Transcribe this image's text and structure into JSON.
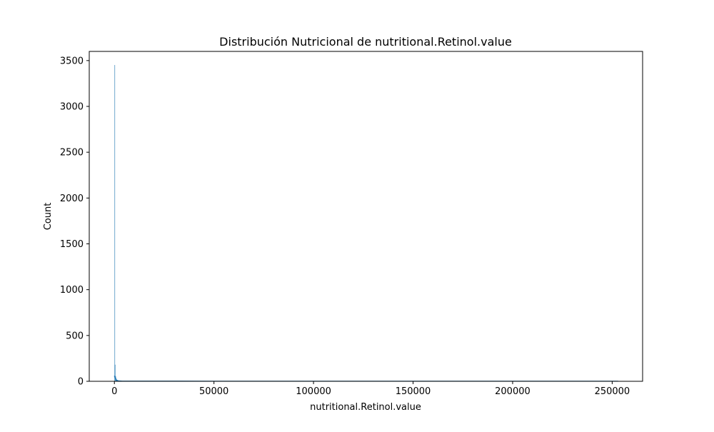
{
  "chart_data": {
    "type": "bar",
    "title": "Distribución Nutricional de nutritional.Retinol.value",
    "xlabel": "nutritional.Retinol.value",
    "ylabel": "Count",
    "xlim": [
      -12632,
      265275
    ],
    "ylim": [
      0,
      3600
    ],
    "x_ticks": [
      0,
      50000,
      100000,
      150000,
      200000,
      250000
    ],
    "x_tick_labels": [
      "0",
      "50000",
      "100000",
      "150000",
      "200000",
      "250000"
    ],
    "y_ticks": [
      0,
      500,
      1000,
      1500,
      2000,
      2500,
      3000,
      3500
    ],
    "y_tick_labels": [
      "0",
      "500",
      "1000",
      "1500",
      "2000",
      "2500",
      "3000",
      "3500"
    ],
    "grid": false,
    "bin_width": 253,
    "bars": [
      {
        "x": 0,
        "count": 3450
      },
      {
        "x": 253,
        "count": 180
      },
      {
        "x": 506,
        "count": 55
      },
      {
        "x": 759,
        "count": 25
      },
      {
        "x": 1012,
        "count": 12
      },
      {
        "x": 1265,
        "count": 6
      },
      {
        "x": 1518,
        "count": 4
      },
      {
        "x": 2024,
        "count": 2
      },
      {
        "x": 3036,
        "count": 1
      },
      {
        "x": 100000,
        "count": 1
      },
      {
        "x": 252747,
        "count": 1
      }
    ],
    "kde": {
      "x": [
        0,
        500,
        1000,
        2000,
        4000,
        10000,
        50000,
        100000,
        150000,
        200000,
        253000
      ],
      "y": [
        60,
        35,
        12,
        4,
        1,
        0.3,
        0.1,
        0.1,
        0.1,
        0.1,
        0.1
      ]
    },
    "colors": {
      "bar_fill": "#1f77b4",
      "kde_line": "#1f77b4",
      "axes": "#000000"
    }
  }
}
